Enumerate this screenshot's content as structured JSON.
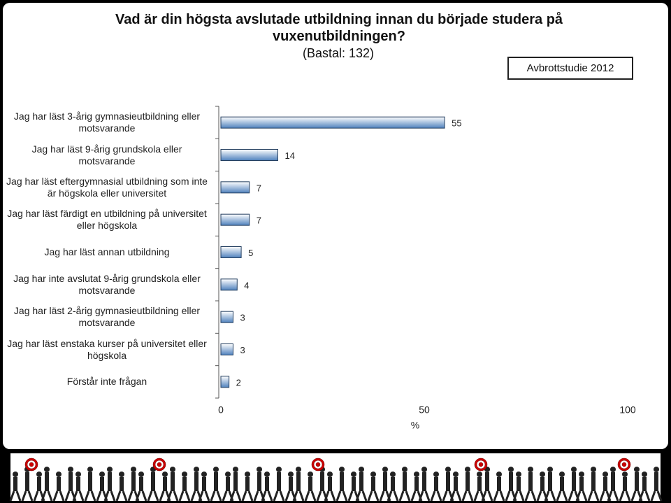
{
  "chart_data": {
    "type": "bar",
    "orientation": "horizontal",
    "title": "Vad är din högsta avslutade utbildning innan du började studera på vuxenutbildningen?",
    "subtitle": "(Bastal: 132)",
    "annotation": "Avbrottstudie 2012",
    "categories": [
      "Jag har läst 3-årig gymnasieutbildning eller motsvarande",
      "Jag har läst 9-årig grundskola eller motsvarande",
      "Jag har läst eftergymnasial utbildning som inte är högskola eller universitet",
      "Jag har läst färdigt en utbildning på universitet eller högskola",
      "Jag har läst annan utbildning",
      "Jag har inte avslutat 9-årig grundskola eller motsvarande",
      "Jag har läst 2-årig gymnasieutbildning eller motsvarande",
      "Jag har läst enstaka kurser på universitet eller högskola",
      "Förstår inte frågan"
    ],
    "values": [
      55,
      14,
      7,
      7,
      5,
      4,
      3,
      3,
      2
    ],
    "color": "#4f81bd",
    "xlabel": "%",
    "xlim": [
      0,
      100
    ],
    "xticks": [
      0,
      50,
      100
    ],
    "grid": false
  }
}
